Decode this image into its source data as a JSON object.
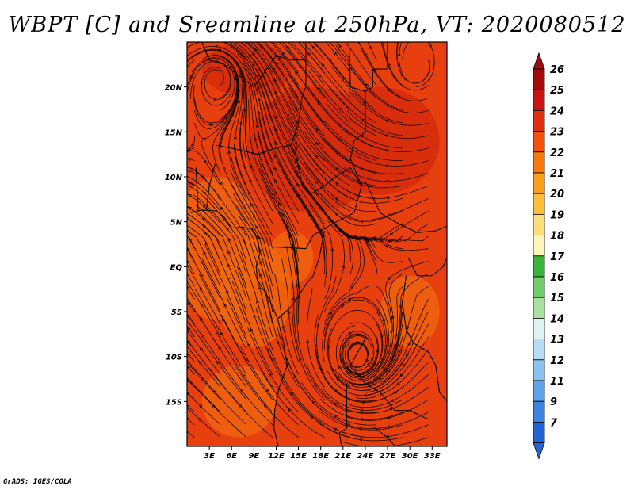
{
  "title": "WBPT [C] and Sreamline at 250hPa, VT: 2020080512",
  "footer": "GrADS: IGES/COLA",
  "map": {
    "lon_range": [
      0,
      35
    ],
    "lat_range": [
      -20,
      25
    ],
    "x_ticks": [
      "3E",
      "6E",
      "9E",
      "12E",
      "15E",
      "18E",
      "21E",
      "24E",
      "27E",
      "30E",
      "33E"
    ],
    "x_tick_values": [
      3,
      6,
      9,
      12,
      15,
      18,
      21,
      24,
      27,
      30,
      33
    ],
    "y_ticks": [
      "20N",
      "15N",
      "10N",
      "5N",
      "EQ",
      "5S",
      "10S",
      "15S"
    ],
    "y_tick_values": [
      20,
      15,
      10,
      5,
      0,
      -5,
      -10,
      -15
    ],
    "field_colors": {
      "warm": "#d42a0c",
      "mid": "#e83f0e",
      "cool": "#f26a10"
    }
  },
  "colorbar": {
    "labels": [
      "26",
      "25",
      "24",
      "23",
      "22",
      "21",
      "20",
      "19",
      "18",
      "17",
      "16",
      "15",
      "14",
      "13",
      "12",
      "11",
      "9",
      "7"
    ],
    "colors": [
      "#a50a0a",
      "#c81410",
      "#e0300d",
      "#f2520c",
      "#f77a0c",
      "#fa9f18",
      "#fbbf3a",
      "#fdde7a",
      "#fef6b8",
      "#39b43a",
      "#72cc6a",
      "#a9e2a0",
      "#dff4f2",
      "#b9ddf5",
      "#8cc2ef",
      "#5ea3e7",
      "#3d84de",
      "#2364d4"
    ]
  }
}
